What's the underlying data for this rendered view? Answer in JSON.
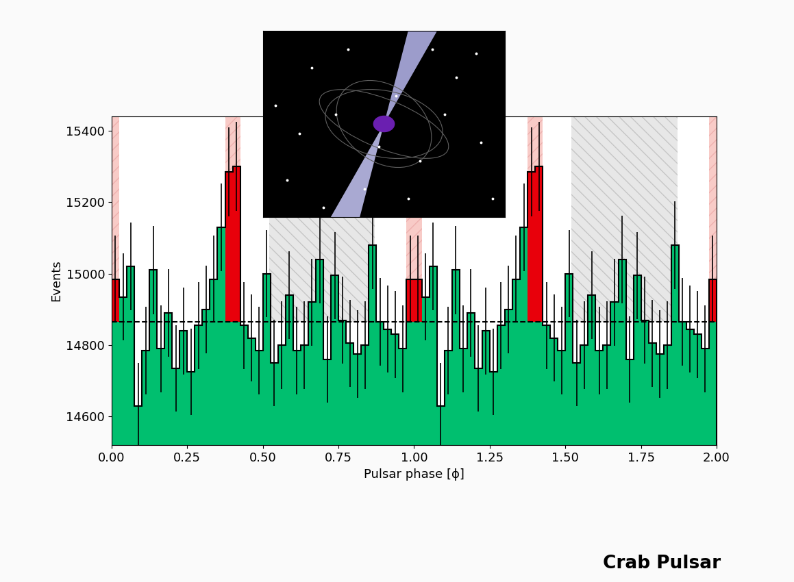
{
  "chart_data": {
    "type": "histogram",
    "annotation": "Crab Pulsar",
    "x_label": "Pulsar phase [ϕ]",
    "y_label": "Events",
    "bins": [
      0.0,
      0.025,
      0.05,
      0.075,
      0.1,
      0.125,
      0.15,
      0.175,
      0.2,
      0.225,
      0.25,
      0.275,
      0.3,
      0.325,
      0.35,
      0.375,
      0.4,
      0.425,
      0.45,
      0.475,
      0.5,
      0.525,
      0.55,
      0.575,
      0.6,
      0.625,
      0.65,
      0.675,
      0.7,
      0.725,
      0.75,
      0.775,
      0.8,
      0.825,
      0.85,
      0.875,
      0.9,
      0.925,
      0.95,
      0.975,
      1.0,
      1.025,
      1.05,
      1.075,
      1.1,
      1.125,
      1.15,
      1.175,
      1.2,
      1.225,
      1.25,
      1.275,
      1.3,
      1.325,
      1.35,
      1.375,
      1.4,
      1.425,
      1.45,
      1.475,
      1.5,
      1.525,
      1.55,
      1.575,
      1.6,
      1.625,
      1.65,
      1.675,
      1.7,
      1.725,
      1.75,
      1.775,
      1.8,
      1.825,
      1.85,
      1.875,
      1.9,
      1.925,
      1.95,
      1.975,
      2.0
    ],
    "values": [
      14985,
      14935,
      15020,
      14630,
      14785,
      15010,
      14790,
      14890,
      14735,
      14840,
      14725,
      14855,
      14900,
      14985,
      15130,
      15285,
      15300,
      14855,
      14820,
      14785,
      15000,
      14750,
      14800,
      14940,
      14785,
      14800,
      14920,
      15040,
      14760,
      14995,
      14870,
      14805,
      14775,
      14800,
      15080,
      14865,
      14845,
      14830,
      14790,
      14985,
      14985,
      14935,
      15020,
      14630,
      14785,
      15010,
      14790,
      14890,
      14735,
      14840,
      14725,
      14855,
      14900,
      14985,
      15130,
      15285,
      15300,
      14855,
      14820,
      14785,
      15000,
      14750,
      14800,
      14940,
      14785,
      14800,
      14920,
      15040,
      14760,
      14995,
      14870,
      14805,
      14775,
      14800,
      15080,
      14865,
      14845,
      14830,
      14790,
      14985
    ],
    "errors": [
      122,
      122,
      123,
      121,
      122,
      123,
      122,
      122,
      121,
      122,
      121,
      122,
      122,
      122,
      123,
      124,
      124,
      122,
      122,
      122,
      122,
      121,
      122,
      122,
      122,
      122,
      122,
      123,
      121,
      122,
      122,
      122,
      122,
      122,
      123,
      122,
      122,
      122,
      122,
      122,
      122,
      122,
      123,
      121,
      122,
      123,
      122,
      122,
      121,
      122,
      121,
      122,
      122,
      122,
      123,
      124,
      124,
      122,
      122,
      122,
      122,
      121,
      122,
      122,
      122,
      122,
      122,
      123,
      121,
      122,
      122,
      122,
      122,
      122,
      123,
      122,
      122,
      122,
      122,
      122
    ],
    "colors": [
      "#e8000b",
      "#00bf6f",
      "#00bf6f",
      "#00bf6f",
      "#00bf6f",
      "#00bf6f",
      "#00bf6f",
      "#00bf6f",
      "#00bf6f",
      "#00bf6f",
      "#00bf6f",
      "#00bf6f",
      "#00bf6f",
      "#00bf6f",
      "#00bf6f",
      "#e8000b",
      "#e8000b",
      "#00bf6f",
      "#00bf6f",
      "#00bf6f",
      "#00bf6f",
      "#00bf6f",
      "#00bf6f",
      "#00bf6f",
      "#00bf6f",
      "#00bf6f",
      "#00bf6f",
      "#00bf6f",
      "#00bf6f",
      "#00bf6f",
      "#00bf6f",
      "#00bf6f",
      "#00bf6f",
      "#00bf6f",
      "#00bf6f",
      "#00bf6f",
      "#00bf6f",
      "#00bf6f",
      "#00bf6f",
      "#e8000b",
      "#e8000b",
      "#00bf6f",
      "#00bf6f",
      "#00bf6f",
      "#00bf6f",
      "#00bf6f",
      "#00bf6f",
      "#00bf6f",
      "#00bf6f",
      "#00bf6f",
      "#00bf6f",
      "#00bf6f",
      "#00bf6f",
      "#00bf6f",
      "#00bf6f",
      "#e8000b",
      "#e8000b",
      "#00bf6f",
      "#00bf6f",
      "#00bf6f",
      "#00bf6f",
      "#00bf6f",
      "#00bf6f",
      "#00bf6f",
      "#00bf6f",
      "#00bf6f",
      "#00bf6f",
      "#00bf6f",
      "#00bf6f",
      "#00bf6f",
      "#00bf6f",
      "#00bf6f",
      "#00bf6f",
      "#00bf6f",
      "#00bf6f",
      "#00bf6f",
      "#00bf6f",
      "#00bf6f",
      "#00bf6f",
      "#e8000b"
    ],
    "background": 14865,
    "on_pulse_regions": [
      [
        0.0,
        0.025
      ],
      [
        0.375,
        0.425
      ],
      [
        0.975,
        1.025
      ],
      [
        1.375,
        1.425
      ],
      [
        1.975,
        2.0
      ]
    ],
    "off_pulse_regions": [
      [
        0.52,
        0.87
      ],
      [
        1.52,
        1.87
      ]
    ],
    "xlim": [
      0.0,
      2.0
    ],
    "ylim": [
      14520,
      15440
    ],
    "xticks": [
      {
        "value": 0.0,
        "label": "0.00"
      },
      {
        "value": 0.25,
        "label": "0.25"
      },
      {
        "value": 0.5,
        "label": "0.50"
      },
      {
        "value": 0.75,
        "label": "0.75"
      },
      {
        "value": 1.0,
        "label": "1.00"
      },
      {
        "value": 1.25,
        "label": "1.25"
      },
      {
        "value": 1.5,
        "label": "1.50"
      },
      {
        "value": 1.75,
        "label": "1.75"
      },
      {
        "value": 2.0,
        "label": "2.00"
      }
    ],
    "yticks": [
      14600,
      14800,
      15000,
      15200,
      15400
    ]
  }
}
